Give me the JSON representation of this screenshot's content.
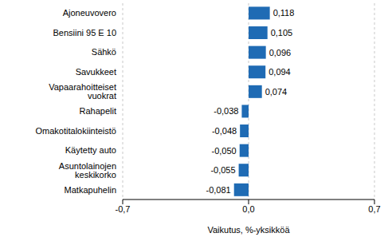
{
  "chart_data": {
    "type": "bar",
    "orientation": "horizontal",
    "x_label": "Vaikutus, %-yksikköä",
    "categories": [
      "Ajoneuvovero",
      "Bensiini 95 E 10",
      "Sähkö",
      "Savukkeet",
      "Vapaarahoitteiset vuokrat",
      "Rahapelit",
      "Omakotitalokiinteistö",
      "Käytetty auto",
      "Asuntolainojen keskikorko",
      "Matkapuhelin"
    ],
    "values": [
      0.118,
      0.105,
      0.096,
      0.094,
      0.074,
      -0.038,
      -0.048,
      -0.05,
      -0.055,
      -0.081
    ],
    "value_labels": [
      "0,118",
      "0,105",
      "0,096",
      "0,094",
      "0,074",
      "-0,038",
      "-0,048",
      "-0,050",
      "-0,055",
      "-0,081"
    ],
    "data_labels": true,
    "color": "#1f6bb4",
    "xlim": [
      -0.7,
      0.7
    ],
    "xticks": [
      {
        "value": -0.7,
        "label": "-0,7"
      },
      {
        "value": 0,
        "label": "0,0"
      },
      {
        "value": 0.7,
        "label": "0,7"
      }
    ],
    "grid": true
  }
}
